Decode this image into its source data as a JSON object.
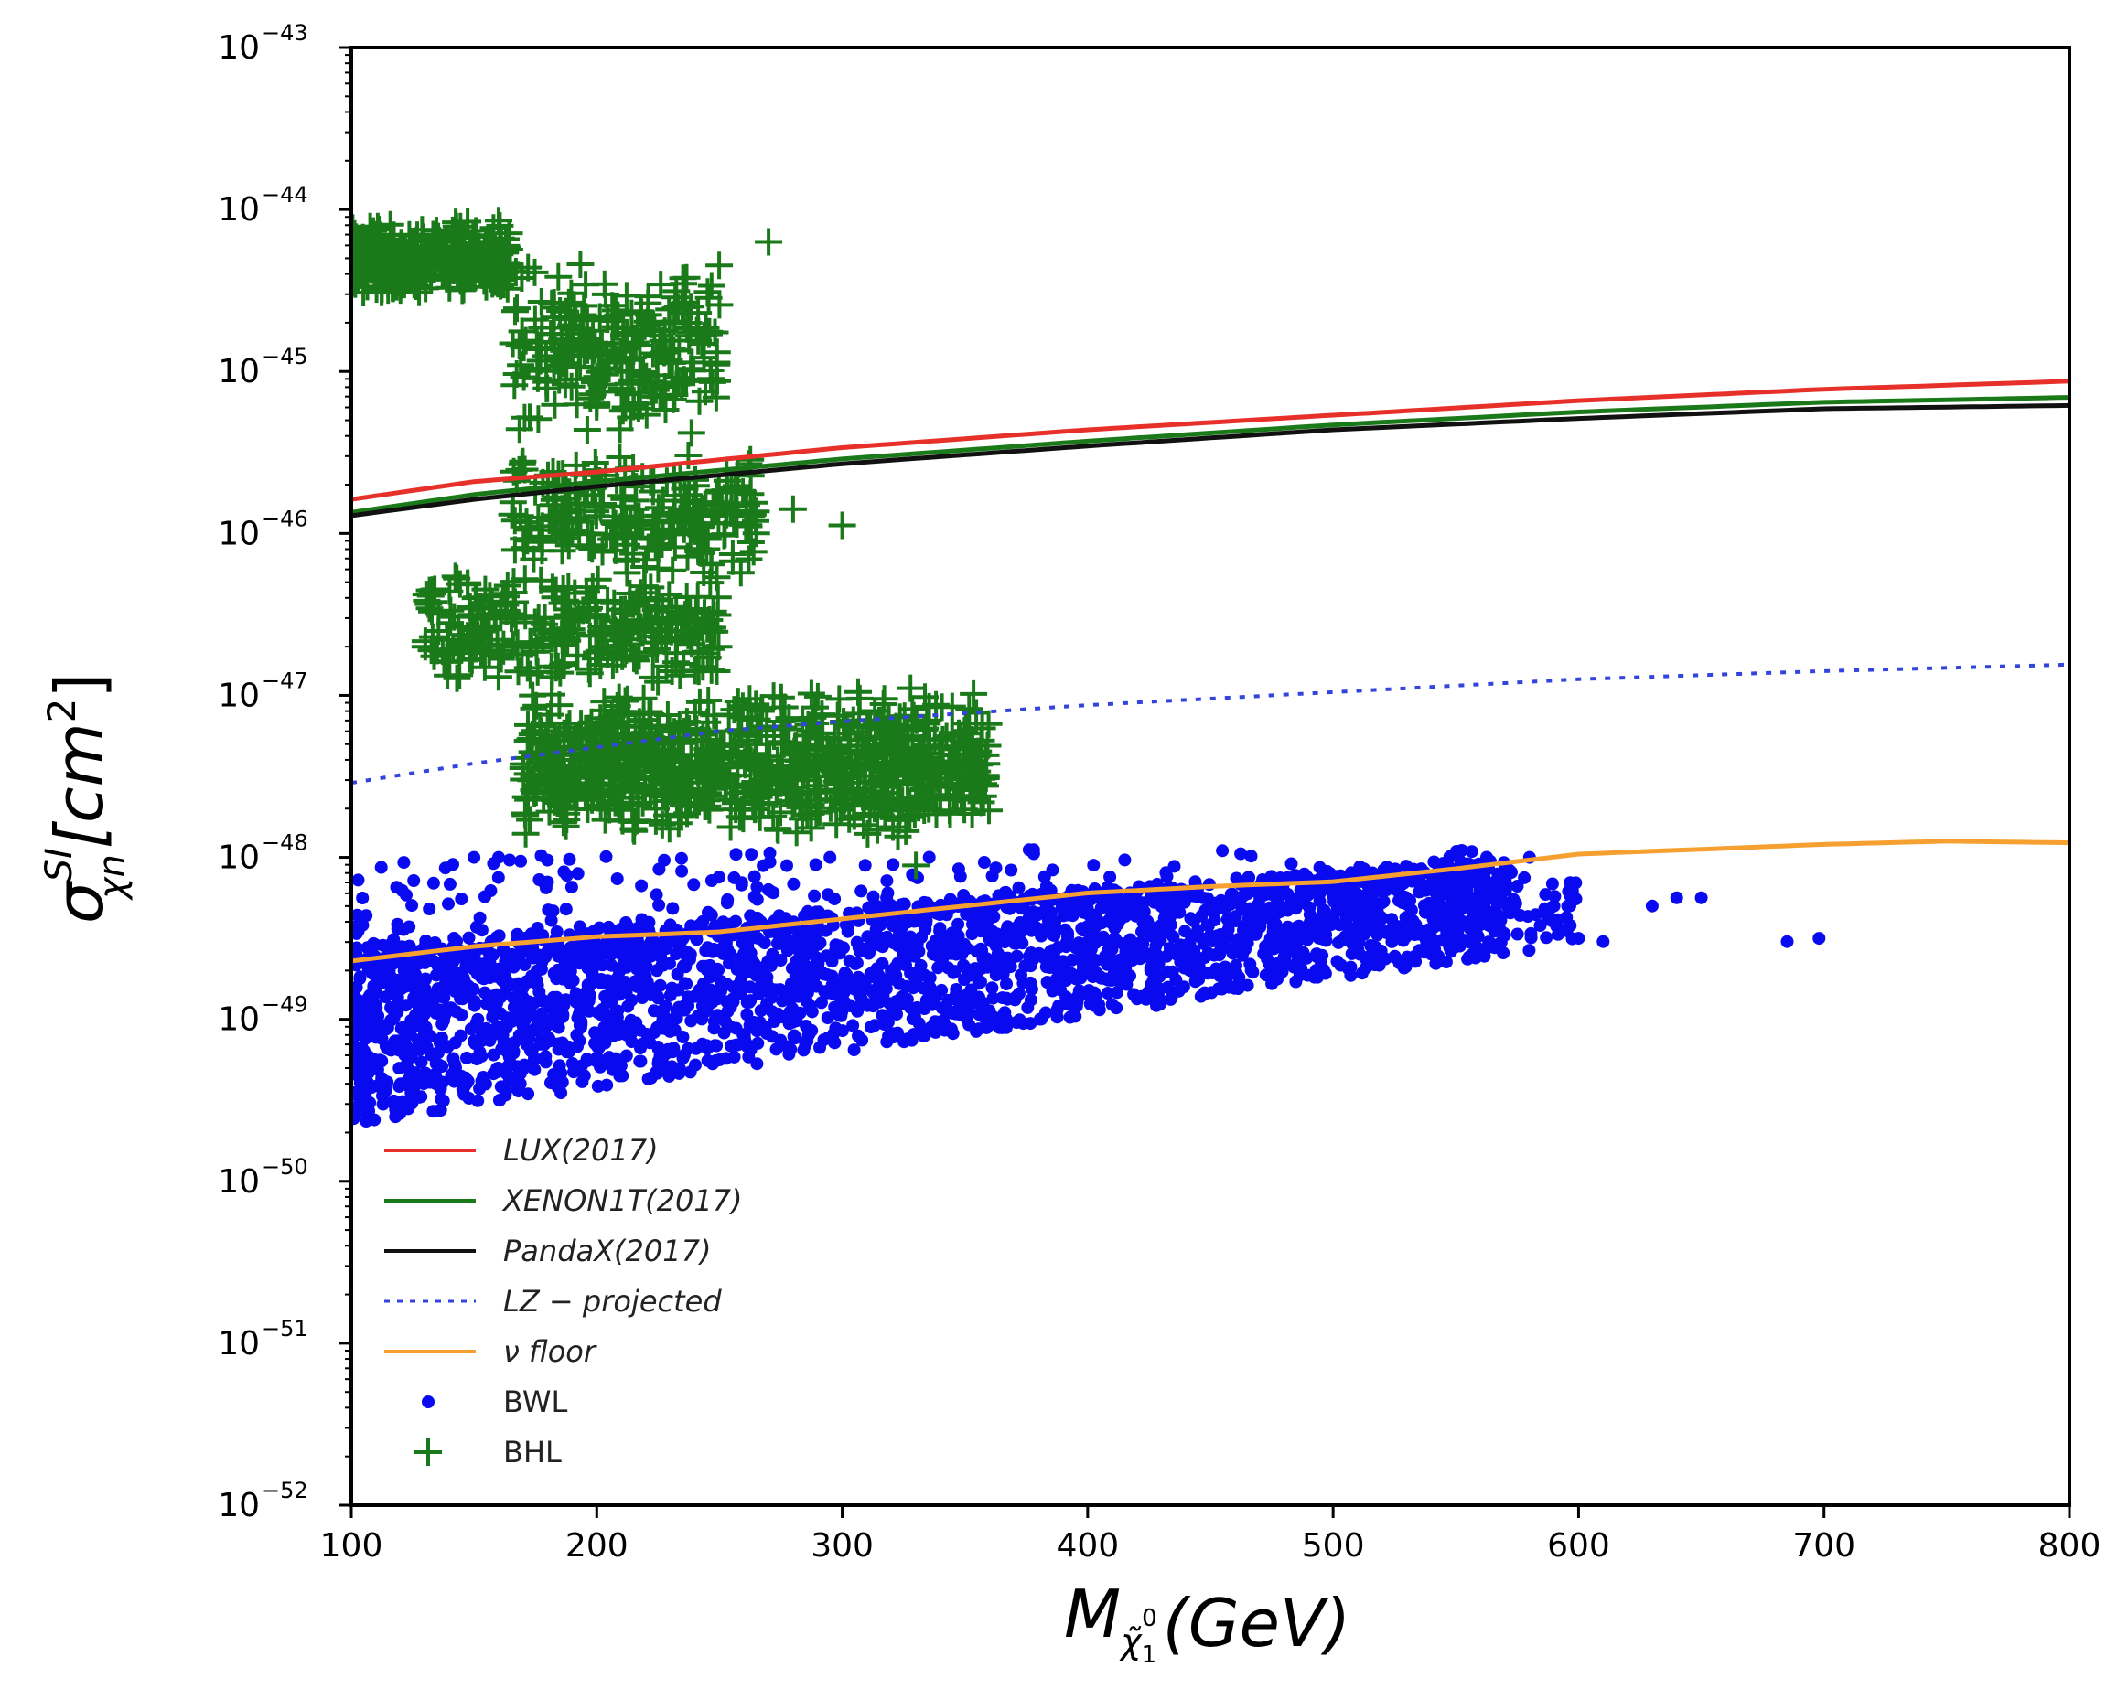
{
  "chart_data": {
    "type": "scatter",
    "title": "",
    "xlabel": {
      "main": "M",
      "sub": "χ̃",
      "subsub": "1",
      "sup": "0",
      "unit": "(GeV)"
    },
    "ylabel": {
      "main": "σ",
      "sup": "SI",
      "sub": "χn",
      "unit": "[cm",
      "unit_sup": "2",
      "unit_end": "]"
    },
    "xlim": [
      100,
      800
    ],
    "ylim_log10": [
      -52,
      -43
    ],
    "yscale": "log",
    "x_ticks": [
      "100",
      "200",
      "300",
      "400",
      "500",
      "600",
      "700",
      "800"
    ],
    "y_ticks": [
      {
        "base": "10",
        "exp": "−52"
      },
      {
        "base": "10",
        "exp": "−51"
      },
      {
        "base": "10",
        "exp": "−50"
      },
      {
        "base": "10",
        "exp": "−49"
      },
      {
        "base": "10",
        "exp": "−48"
      },
      {
        "base": "10",
        "exp": "−47"
      },
      {
        "base": "10",
        "exp": "−46"
      },
      {
        "base": "10",
        "exp": "−45"
      },
      {
        "base": "10",
        "exp": "−44"
      },
      {
        "base": "10",
        "exp": "−43"
      }
    ],
    "lines": [
      {
        "name": "LUX(2017)",
        "color": "#e8302a",
        "style": "solid",
        "x": [
          100,
          150,
          200,
          300,
          400,
          500,
          600,
          700,
          800
        ],
        "log10y": [
          -45.79,
          -45.68,
          -45.62,
          -45.47,
          -45.36,
          -45.27,
          -45.18,
          -45.11,
          -45.06
        ]
      },
      {
        "name": "XENON1T(2017)",
        "color": "#1a7a1a",
        "style": "solid",
        "x": [
          100,
          150,
          200,
          300,
          400,
          500,
          600,
          700,
          800
        ],
        "log10y": [
          -45.87,
          -45.76,
          -45.68,
          -45.54,
          -45.43,
          -45.33,
          -45.25,
          -45.19,
          -45.16
        ]
      },
      {
        "name": "PandaX(2017)",
        "color": "#111111",
        "style": "solid",
        "x": [
          100,
          150,
          200,
          300,
          400,
          500,
          600,
          700,
          800
        ],
        "log10y": [
          -45.89,
          -45.79,
          -45.71,
          -45.57,
          -45.46,
          -45.36,
          -45.29,
          -45.23,
          -45.21
        ]
      },
      {
        "name": "LZ − projected",
        "color": "#3344dd",
        "style": "dotted",
        "x": [
          100,
          150,
          200,
          250,
          300,
          400,
          500,
          600,
          700,
          800
        ],
        "log10y": [
          -47.54,
          -47.42,
          -47.32,
          -47.22,
          -47.16,
          -47.06,
          -46.98,
          -46.9,
          -46.85,
          -46.81
        ]
      },
      {
        "name": "ν floor",
        "color": "#f5a030",
        "style": "solid",
        "x": [
          100,
          150,
          200,
          250,
          300,
          350,
          400,
          450,
          500,
          550,
          600,
          650,
          700,
          750,
          800
        ],
        "log10y": [
          -48.64,
          -48.55,
          -48.49,
          -48.46,
          -48.38,
          -48.3,
          -48.22,
          -48.18,
          -48.15,
          -48.07,
          -47.98,
          -47.95,
          -47.92,
          -47.9,
          -47.91
        ]
      }
    ],
    "scatter": [
      {
        "name": "BWL",
        "marker": "dot",
        "color": "#0a0af0",
        "region": "dense band from x=100 to ~560, log10(σ) ranging from about -49.6 to -48.0, rising with mass",
        "x_range": [
          100,
          700
        ],
        "outliers_x": [
          150,
          160,
          295,
          580,
          590,
          600,
          610,
          630,
          640,
          650,
          685,
          698
        ],
        "outliers_log10y": [
          -48.0,
          -48.0,
          -48.0,
          -48.0,
          -48.3,
          -48.5,
          -48.52,
          -48.3,
          -48.25,
          -48.25,
          -48.52,
          -48.5
        ]
      },
      {
        "name": "BHL",
        "marker": "plus",
        "color": "#1a7a1a",
        "clusters": [
          {
            "x_range": [
              100,
              165
            ],
            "log10y_range": [
              -44.55,
              -44.05
            ]
          },
          {
            "x_range": [
              165,
              250
            ],
            "log10y_range": [
              -45.4,
              -44.3
            ]
          },
          {
            "x_range": [
              165,
              265
            ],
            "log10y_range": [
              -46.3,
              -45.5
            ]
          },
          {
            "x_range": [
              130,
              250
            ],
            "log10y_range": [
              -46.95,
              -46.2
            ]
          },
          {
            "x_range": [
              170,
              360
            ],
            "log10y_range": [
              -47.9,
              -46.95
            ]
          }
        ],
        "outliers_x": [
          270,
          280,
          300,
          265,
          330
        ],
        "outliers_log10y": [
          -44.2,
          -45.85,
          -45.95,
          -46.0,
          -48.05
        ]
      }
    ],
    "legend": {
      "placement": "lower-left",
      "entries": [
        {
          "label": "LUX(2017)",
          "kind": "line",
          "color": "#e8302a",
          "style": "solid"
        },
        {
          "label": "XENON1T(2017)",
          "kind": "line",
          "color": "#1a7a1a",
          "style": "solid"
        },
        {
          "label": "PandaX(2017)",
          "kind": "line",
          "color": "#111111",
          "style": "solid"
        },
        {
          "label": "LZ − projected",
          "kind": "line",
          "color": "#3344dd",
          "style": "dotted"
        },
        {
          "label": "ν floor",
          "kind": "line",
          "color": "#f5a030",
          "style": "solid"
        },
        {
          "label": "BWL",
          "kind": "dot",
          "color": "#0a0af0"
        },
        {
          "label": "BHL",
          "kind": "plus",
          "color": "#1a7a1a"
        }
      ]
    }
  }
}
